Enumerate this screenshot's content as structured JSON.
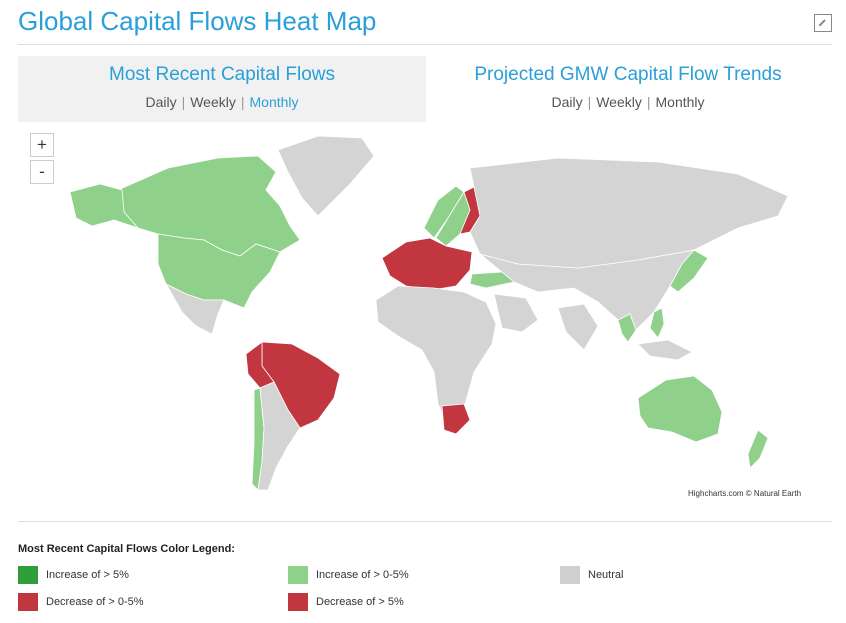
{
  "header": {
    "title": "Global Capital Flows Heat Map",
    "expand_icon": "expand-icon"
  },
  "tabs": [
    {
      "title": "Most Recent Capital Flows",
      "options": [
        "Daily",
        "Weekly",
        "Monthly"
      ],
      "active": "Monthly"
    },
    {
      "title": "Projected GMW Capital Flow Trends",
      "options": [
        "Daily",
        "Weekly",
        "Monthly"
      ],
      "active": ""
    }
  ],
  "zoom": {
    "in": "+",
    "out": "-"
  },
  "map": {
    "credit": "Highcharts.com © Natural Earth",
    "colors": {
      "neutral": "#d4d4d4",
      "increase_0_5": "#8fd18a",
      "increase_5": "#2e9e3a",
      "decrease_0_5": "#c2363f",
      "decrease_5": "#c2363f"
    },
    "regions": [
      {
        "name": "Canada",
        "category": "increase_0_5"
      },
      {
        "name": "Alaska",
        "category": "increase_0_5"
      },
      {
        "name": "United States",
        "category": "increase_0_5"
      },
      {
        "name": "Greenland",
        "category": "neutral"
      },
      {
        "name": "Mexico",
        "category": "neutral"
      },
      {
        "name": "Brazil",
        "category": "decrease_0_5"
      },
      {
        "name": "Peru",
        "category": "decrease_0_5"
      },
      {
        "name": "Chile",
        "category": "increase_0_5"
      },
      {
        "name": "Argentina",
        "category": "neutral"
      },
      {
        "name": "Norway",
        "category": "increase_0_5"
      },
      {
        "name": "Sweden",
        "category": "increase_0_5"
      },
      {
        "name": "Finland",
        "category": "decrease_0_5"
      },
      {
        "name": "Western Europe",
        "category": "decrease_0_5"
      },
      {
        "name": "Turkey",
        "category": "increase_0_5"
      },
      {
        "name": "Russia",
        "category": "neutral"
      },
      {
        "name": "Africa",
        "category": "neutral"
      },
      {
        "name": "South Africa",
        "category": "decrease_0_5"
      },
      {
        "name": "Japan",
        "category": "increase_0_5"
      },
      {
        "name": "Thailand",
        "category": "increase_0_5"
      },
      {
        "name": "Philippines",
        "category": "increase_0_5"
      },
      {
        "name": "Australia",
        "category": "increase_0_5"
      },
      {
        "name": "New Zealand",
        "category": "increase_0_5"
      }
    ]
  },
  "legend": {
    "title": "Most Recent Capital Flows Color Legend:",
    "items": [
      {
        "label": "Increase of > 5%",
        "color": "#2e9e3a"
      },
      {
        "label": "Increase of > 0-5%",
        "color": "#8fd18a"
      },
      {
        "label": "Neutral",
        "color": "#cfcfcf"
      },
      {
        "label": "Decrease of > 0-5%",
        "color": "#c2363f"
      },
      {
        "label": "Decrease of > 5%",
        "color": "#c2363f"
      }
    ]
  }
}
